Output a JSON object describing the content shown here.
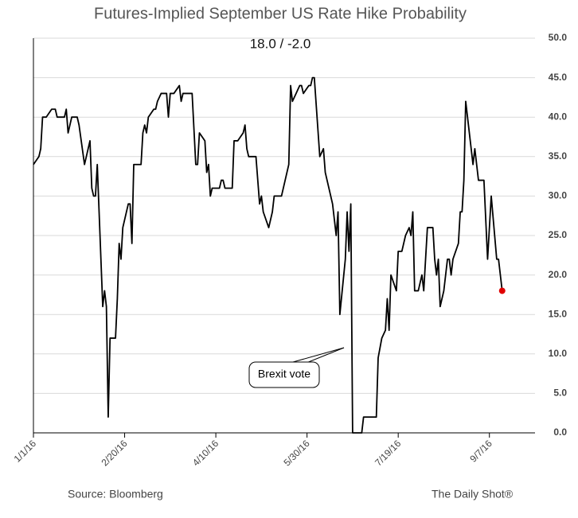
{
  "chart_data": {
    "type": "line",
    "title": "Futures-Implied September US Rate Hike Probability",
    "subtitle": "18.0  /  -2.0",
    "source": "Source: Bloomberg",
    "credit": "The Daily Shot®",
    "annotation": "Brexit vote",
    "color": "#000000",
    "last_point_color": "#e00000",
    "grid": true,
    "xlim": [
      "2016-01-01",
      "2016-10-02"
    ],
    "xticks": [
      {
        "value": "2016-01-01",
        "label": "1/1/16"
      },
      {
        "value": "2016-02-20",
        "label": "2/20/16"
      },
      {
        "value": "2016-04-10",
        "label": "4/10/16"
      },
      {
        "value": "2016-05-30",
        "label": "5/30/16"
      },
      {
        "value": "2016-07-19",
        "label": "7/19/16"
      },
      {
        "value": "2016-09-07",
        "label": "9/7/16"
      }
    ],
    "ylim": [
      0,
      50
    ],
    "yticks": [
      {
        "value": 0,
        "label": "0.0"
      },
      {
        "value": 5,
        "label": "5.0"
      },
      {
        "value": 10,
        "label": "10.0"
      },
      {
        "value": 15,
        "label": "15.0"
      },
      {
        "value": 20,
        "label": "20.0"
      },
      {
        "value": 25,
        "label": "25.0"
      },
      {
        "value": 30,
        "label": "30.0"
      },
      {
        "value": 35,
        "label": "35.0"
      },
      {
        "value": 40,
        "label": "40.0"
      },
      {
        "value": 45,
        "label": "45.0"
      },
      {
        "value": 50,
        "label": "50.0"
      }
    ],
    "x": [
      "2016-01-01",
      "2016-01-04",
      "2016-01-05",
      "2016-01-06",
      "2016-01-08",
      "2016-01-11",
      "2016-01-13",
      "2016-01-14",
      "2016-01-18",
      "2016-01-19",
      "2016-01-20",
      "2016-01-22",
      "2016-01-25",
      "2016-01-26",
      "2016-01-29",
      "2016-02-01",
      "2016-02-02",
      "2016-02-03",
      "2016-02-04",
      "2016-02-05",
      "2016-02-08",
      "2016-02-09",
      "2016-02-10",
      "2016-02-11",
      "2016-02-12",
      "2016-02-15",
      "2016-02-16",
      "2016-02-17",
      "2016-02-18",
      "2016-02-19",
      "2016-02-22",
      "2016-02-23",
      "2016-02-24",
      "2016-02-25",
      "2016-02-29",
      "2016-03-01",
      "2016-03-02",
      "2016-03-03",
      "2016-03-04",
      "2016-03-07",
      "2016-03-08",
      "2016-03-09",
      "2016-03-11",
      "2016-03-14",
      "2016-03-15",
      "2016-03-16",
      "2016-03-18",
      "2016-03-21",
      "2016-03-22",
      "2016-03-23",
      "2016-03-28",
      "2016-03-30",
      "2016-03-31",
      "2016-04-01",
      "2016-04-04",
      "2016-04-05",
      "2016-04-06",
      "2016-04-07",
      "2016-04-08",
      "2016-04-12",
      "2016-04-13",
      "2016-04-14",
      "2016-04-15",
      "2016-04-19",
      "2016-04-20",
      "2016-04-22",
      "2016-04-25",
      "2016-04-26",
      "2016-04-27",
      "2016-04-28",
      "2016-05-02",
      "2016-05-03",
      "2016-05-04",
      "2016-05-05",
      "2016-05-06",
      "2016-05-09",
      "2016-05-11",
      "2016-05-12",
      "2016-05-16",
      "2016-05-18",
      "2016-05-20",
      "2016-05-21",
      "2016-05-22",
      "2016-05-24",
      "2016-05-26",
      "2016-05-27",
      "2016-05-28",
      "2016-05-31",
      "2016-06-01",
      "2016-06-02",
      "2016-06-03",
      "2016-06-06",
      "2016-06-08",
      "2016-06-09",
      "2016-06-10",
      "2016-06-13",
      "2016-06-15",
      "2016-06-16",
      "2016-06-17",
      "2016-06-20",
      "2016-06-21",
      "2016-06-22",
      "2016-06-23",
      "2016-06-24",
      "2016-06-27",
      "2016-06-28",
      "2016-06-29",
      "2016-06-30",
      "2016-07-07",
      "2016-07-08",
      "2016-07-10",
      "2016-07-12",
      "2016-07-13",
      "2016-07-14",
      "2016-07-15",
      "2016-07-18",
      "2016-07-19",
      "2016-07-21",
      "2016-07-23",
      "2016-07-25",
      "2016-07-26",
      "2016-07-27",
      "2016-07-28",
      "2016-07-30",
      "2016-08-01",
      "2016-08-02",
      "2016-08-04",
      "2016-08-07",
      "2016-08-08",
      "2016-08-09",
      "2016-08-10",
      "2016-08-11",
      "2016-08-13",
      "2016-08-15",
      "2016-08-16",
      "2016-08-17",
      "2016-08-18",
      "2016-08-21",
      "2016-08-22",
      "2016-08-23",
      "2016-08-24",
      "2016-08-25",
      "2016-08-29",
      "2016-08-30",
      "2016-09-01",
      "2016-09-04",
      "2016-09-06",
      "2016-09-08",
      "2016-09-11",
      "2016-09-12",
      "2016-09-14"
    ],
    "values": [
      34,
      35,
      36,
      40,
      40,
      41,
      41,
      40,
      40,
      41,
      38,
      40,
      40,
      39,
      34,
      37,
      31,
      30,
      30,
      34,
      16,
      18,
      16,
      2,
      12,
      12,
      17,
      24,
      22,
      26,
      29,
      29,
      24,
      34,
      34,
      38,
      39,
      38,
      40,
      41,
      41,
      42,
      43,
      43,
      40,
      43,
      43,
      44,
      42,
      43,
      43,
      34,
      34,
      38,
      37,
      33,
      34,
      30,
      31,
      31,
      32,
      32,
      31,
      31,
      37,
      37,
      38,
      39,
      36,
      35,
      35,
      32,
      29,
      30,
      28,
      26,
      28,
      30,
      30,
      32,
      34,
      44,
      42,
      43,
      44,
      44,
      43,
      44,
      44,
      45,
      45,
      35,
      36,
      33,
      32,
      29,
      25,
      28,
      15,
      22,
      28,
      23,
      29,
      0,
      0,
      0,
      0,
      2,
      2,
      9.5,
      12,
      13,
      17,
      13,
      20,
      18,
      23,
      23,
      25,
      26,
      25,
      28,
      18,
      18,
      20,
      18,
      26,
      26,
      22,
      20,
      22,
      16,
      18,
      22,
      22,
      20,
      22,
      24,
      28,
      28,
      32,
      42,
      34,
      36,
      32,
      32,
      22,
      30,
      22,
      22,
      18
    ]
  }
}
